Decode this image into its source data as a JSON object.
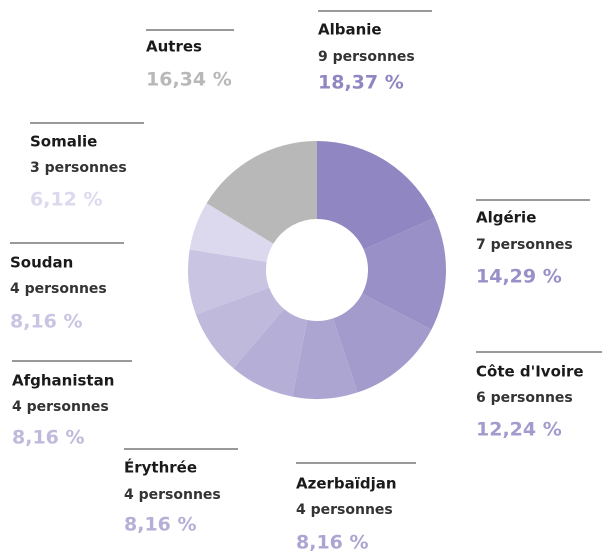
{
  "chart_data": {
    "type": "donut",
    "categories": [
      "Albanie",
      "Algérie",
      "Côte d'Ivoire",
      "Azerbaïdjan",
      "Érythrée",
      "Afghanistan",
      "Soudan",
      "Somalie",
      "Autres"
    ],
    "details": [
      "9 personnes",
      "7 personnes",
      "6 personnes",
      "4 personnes",
      "4 personnes",
      "4 personnes",
      "4 personnes",
      "3 personnes",
      null
    ],
    "values": [
      18.37,
      14.29,
      12.24,
      8.16,
      8.16,
      8.16,
      8.16,
      6.12,
      16.34
    ],
    "value_labels": [
      "18,37 %",
      "14,29 %",
      "12,24 %",
      "8,16 %",
      "8,16 %",
      "8,16 %",
      "8,16 %",
      "6,12 %",
      "16,34 %"
    ],
    "colors": [
      "#8f86c2",
      "#9890c7",
      "#a29bcc",
      "#aca5d2",
      "#b5afd7",
      "#bfb9dc",
      "#c9c4e2",
      "#dcd9ee",
      "#b8b8b8"
    ]
  }
}
